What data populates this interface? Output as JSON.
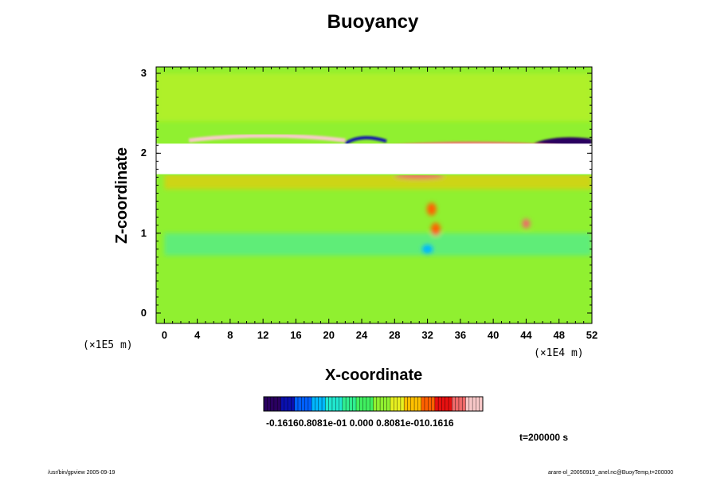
{
  "chart_data": {
    "type": "heatmap",
    "title": "Buoyancy",
    "xlabel": "X-coordinate",
    "ylabel": "Z-coordinate",
    "xlim": [
      -1,
      52
    ],
    "ylim": [
      -0.13,
      3.08
    ],
    "x_ticks": [
      "0",
      "4",
      "8",
      "12",
      "16",
      "20",
      "24",
      "28",
      "32",
      "36",
      "40",
      "44",
      "48",
      "52"
    ],
    "y_ticks": [
      "0",
      "1",
      "2",
      "3"
    ],
    "x_unit": "(×1E4 m)",
    "y_unit": "(×1E5 m)",
    "colorbar": {
      "min": -0.1616,
      "max": 0.1616,
      "labels_text": "-0.16160.8081e-01 0.000 0.8081e-010.1616",
      "colors": [
        "#2a0060",
        "#0a10b0",
        "#0060ff",
        "#00b8ff",
        "#20e8d0",
        "#30ee90",
        "#40f060",
        "#90f030",
        "#e8f020",
        "#ffc000",
        "#ff6000",
        "#e81010",
        "#f06a6a",
        "#f8c8c8"
      ]
    },
    "background_value": 0.0,
    "features": [
      {
        "name": "white band",
        "z_range": [
          1.73,
          2.12
        ],
        "value": null
      },
      {
        "name": "red crest left",
        "x_range": [
          3,
          22
        ],
        "z": 2.2,
        "value": 0.15
      },
      {
        "name": "red crest right",
        "x_range": [
          25,
          50
        ],
        "z": 2.1,
        "value": 0.13
      },
      {
        "name": "blue lobe right",
        "x_range": [
          44,
          52
        ],
        "z": 2.12,
        "value": -0.15
      },
      {
        "name": "orange layer",
        "x_range": [
          0,
          52
        ],
        "z": 1.65,
        "value": 0.06
      },
      {
        "name": "red patch",
        "x_range": [
          28,
          34
        ],
        "z": 1.72,
        "value": 0.12
      },
      {
        "name": "cyan layer",
        "x_range": [
          0,
          52
        ],
        "z": 0.85,
        "value": -0.05
      },
      {
        "name": "orange blob",
        "x": 32.5,
        "z": 1.3,
        "value": 0.08
      },
      {
        "name": "orange blob",
        "x": 33,
        "z": 1.05,
        "value": 0.08
      },
      {
        "name": "red blob",
        "x": 44,
        "z": 1.12,
        "value": 0.12
      },
      {
        "name": "cyan blob",
        "x": 32,
        "z": 0.8,
        "value": -0.07
      }
    ]
  },
  "annotations": {
    "time": "t=200000 s",
    "footer_left": "/usr/bin/gpview 2005-09-19",
    "footer_right": "arare-ol_20050919_anel.nc@BuoyTemp,t=200000"
  }
}
